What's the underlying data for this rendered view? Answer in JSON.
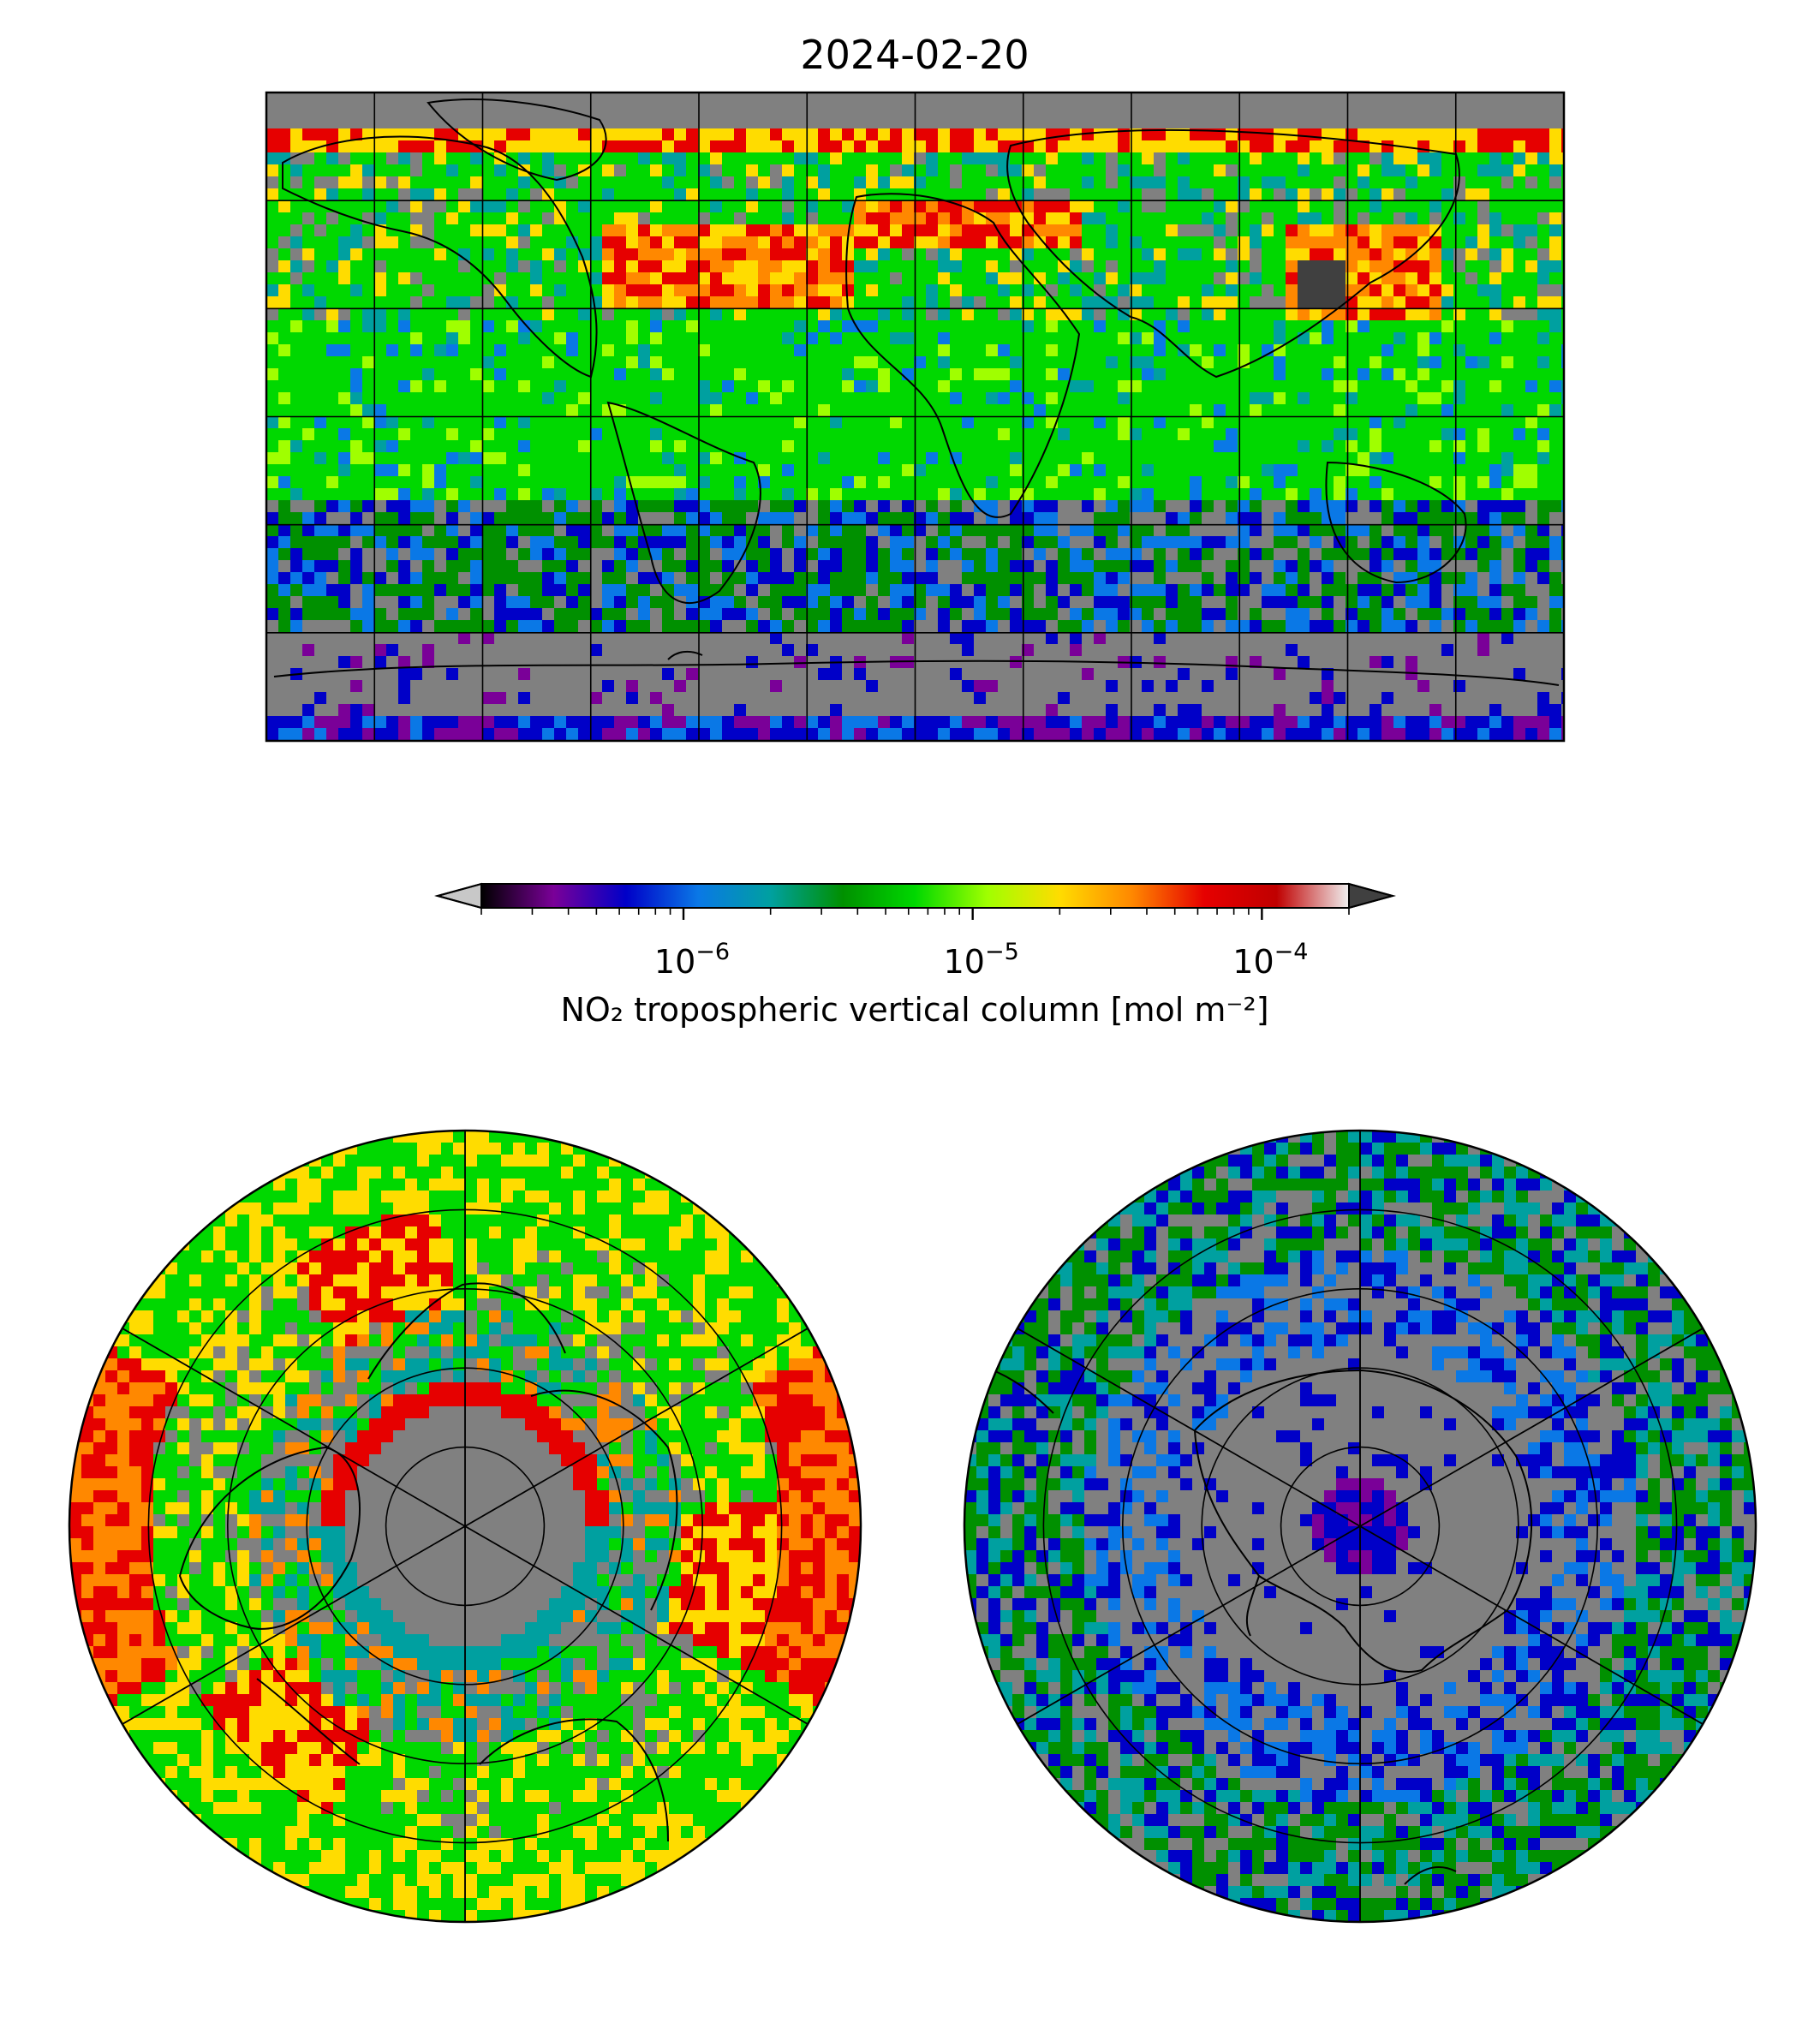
{
  "title": "2024-02-20",
  "colorbar": {
    "label": "NO₂ tropospheric vertical column [mol m⁻²]",
    "scale": "log",
    "range": [
      2e-07,
      0.0002
    ],
    "ticks": [
      {
        "base": "10",
        "exp": "−6"
      },
      {
        "base": "10",
        "exp": "−5"
      },
      {
        "base": "10",
        "exp": "−4"
      }
    ],
    "tick_values": [
      1e-06,
      1e-05,
      0.0001
    ],
    "extend": "both",
    "under_color": "#c8c8c8",
    "over_color": "#404040",
    "colors": [
      "#000000",
      "#7a0098",
      "#0000c8",
      "#0a78e6",
      "#00a0a0",
      "#009000",
      "#00d800",
      "#a0ff00",
      "#ffdc00",
      "#ff8800",
      "#e60000",
      "#c00000",
      "#f0f0f0"
    ]
  },
  "maps": {
    "global": {
      "projection": "plate-carree",
      "no_data_color": "#808080"
    },
    "north": {
      "projection": "north-polar-stereographic",
      "no_data_color": "#808080"
    },
    "south": {
      "projection": "south-polar-stereographic",
      "no_data_color": "#808080"
    }
  }
}
